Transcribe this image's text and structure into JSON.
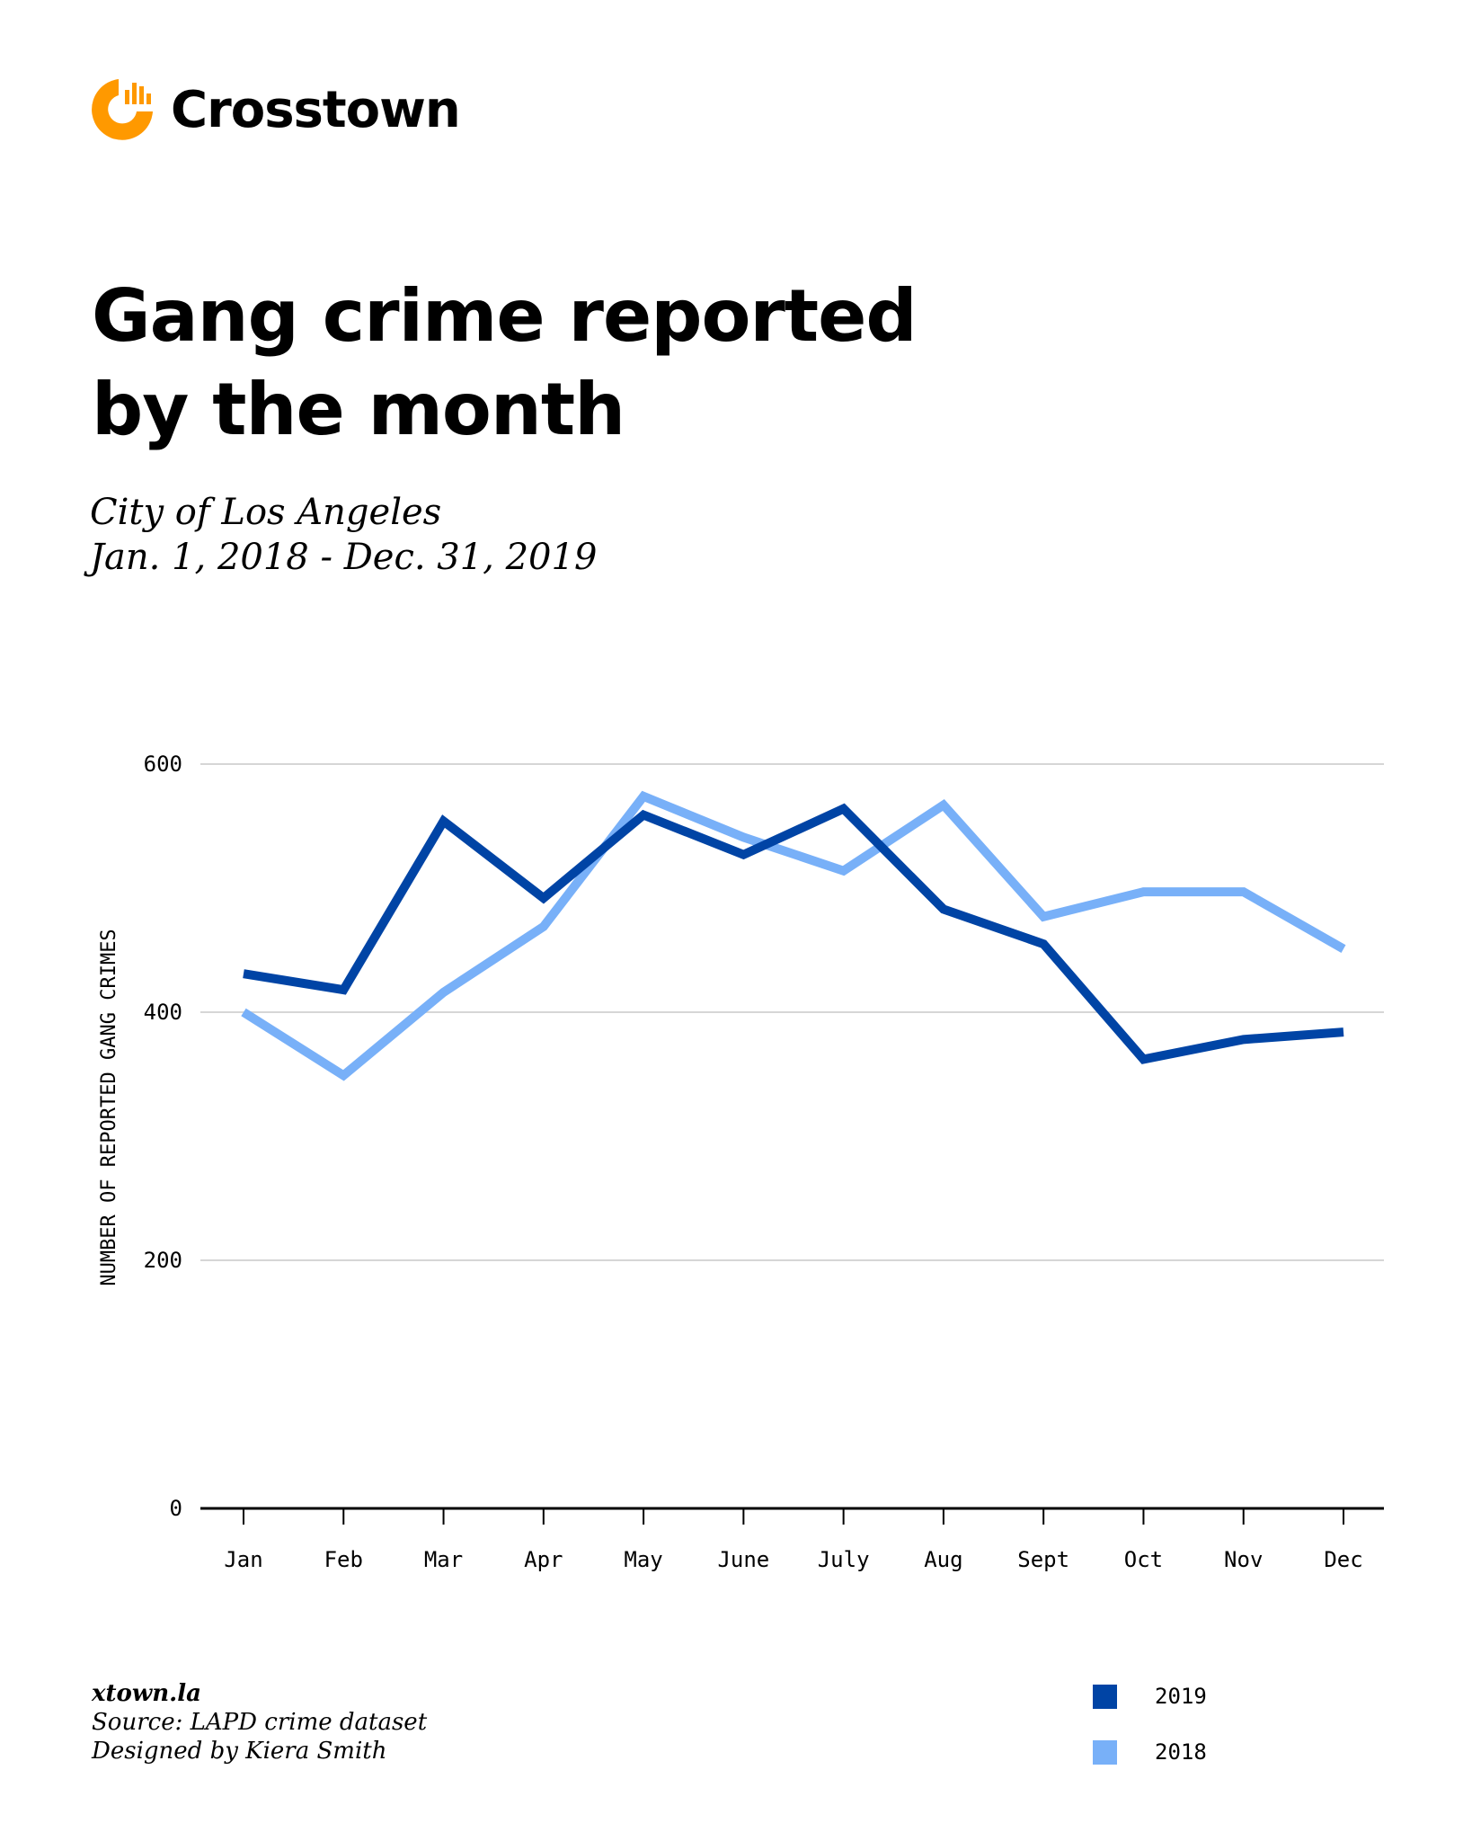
{
  "brand": {
    "name": "Crosstown",
    "color": "#ff9900"
  },
  "title_lines": [
    "Gang crime reported",
    "by the month"
  ],
  "subtitle_lines": [
    "City of Los Angeles",
    "Jan. 1, 2018 - Dec. 31, 2019"
  ],
  "footer": {
    "site": "xtown.la",
    "source": "Source: LAPD crime dataset",
    "credit": "Designed by Kiera Smith"
  },
  "chart_data": {
    "type": "line",
    "title": "Gang crime reported by the month",
    "xlabel": "",
    "ylabel": "NUMBER OF REPORTED GANG CRIMES",
    "categories": [
      "Jan",
      "Feb",
      "Mar",
      "Apr",
      "May",
      "June",
      "July",
      "Aug",
      "Sept",
      "Oct",
      "Nov",
      "Dec"
    ],
    "ylim": [
      0,
      600
    ],
    "yticks": [
      0,
      200,
      400,
      600
    ],
    "grid": true,
    "legend_placement": "bottom-right",
    "series": [
      {
        "name": "2019",
        "color": "#0044a5",
        "values": [
          431,
          418,
          554,
          492,
          559,
          527,
          564,
          483,
          455,
          362,
          378,
          384
        ]
      },
      {
        "name": "2018",
        "color": "#78b0f8",
        "values": [
          400,
          349,
          416,
          469,
          574,
          541,
          514,
          567,
          477,
          497,
          497,
          451
        ]
      }
    ]
  }
}
